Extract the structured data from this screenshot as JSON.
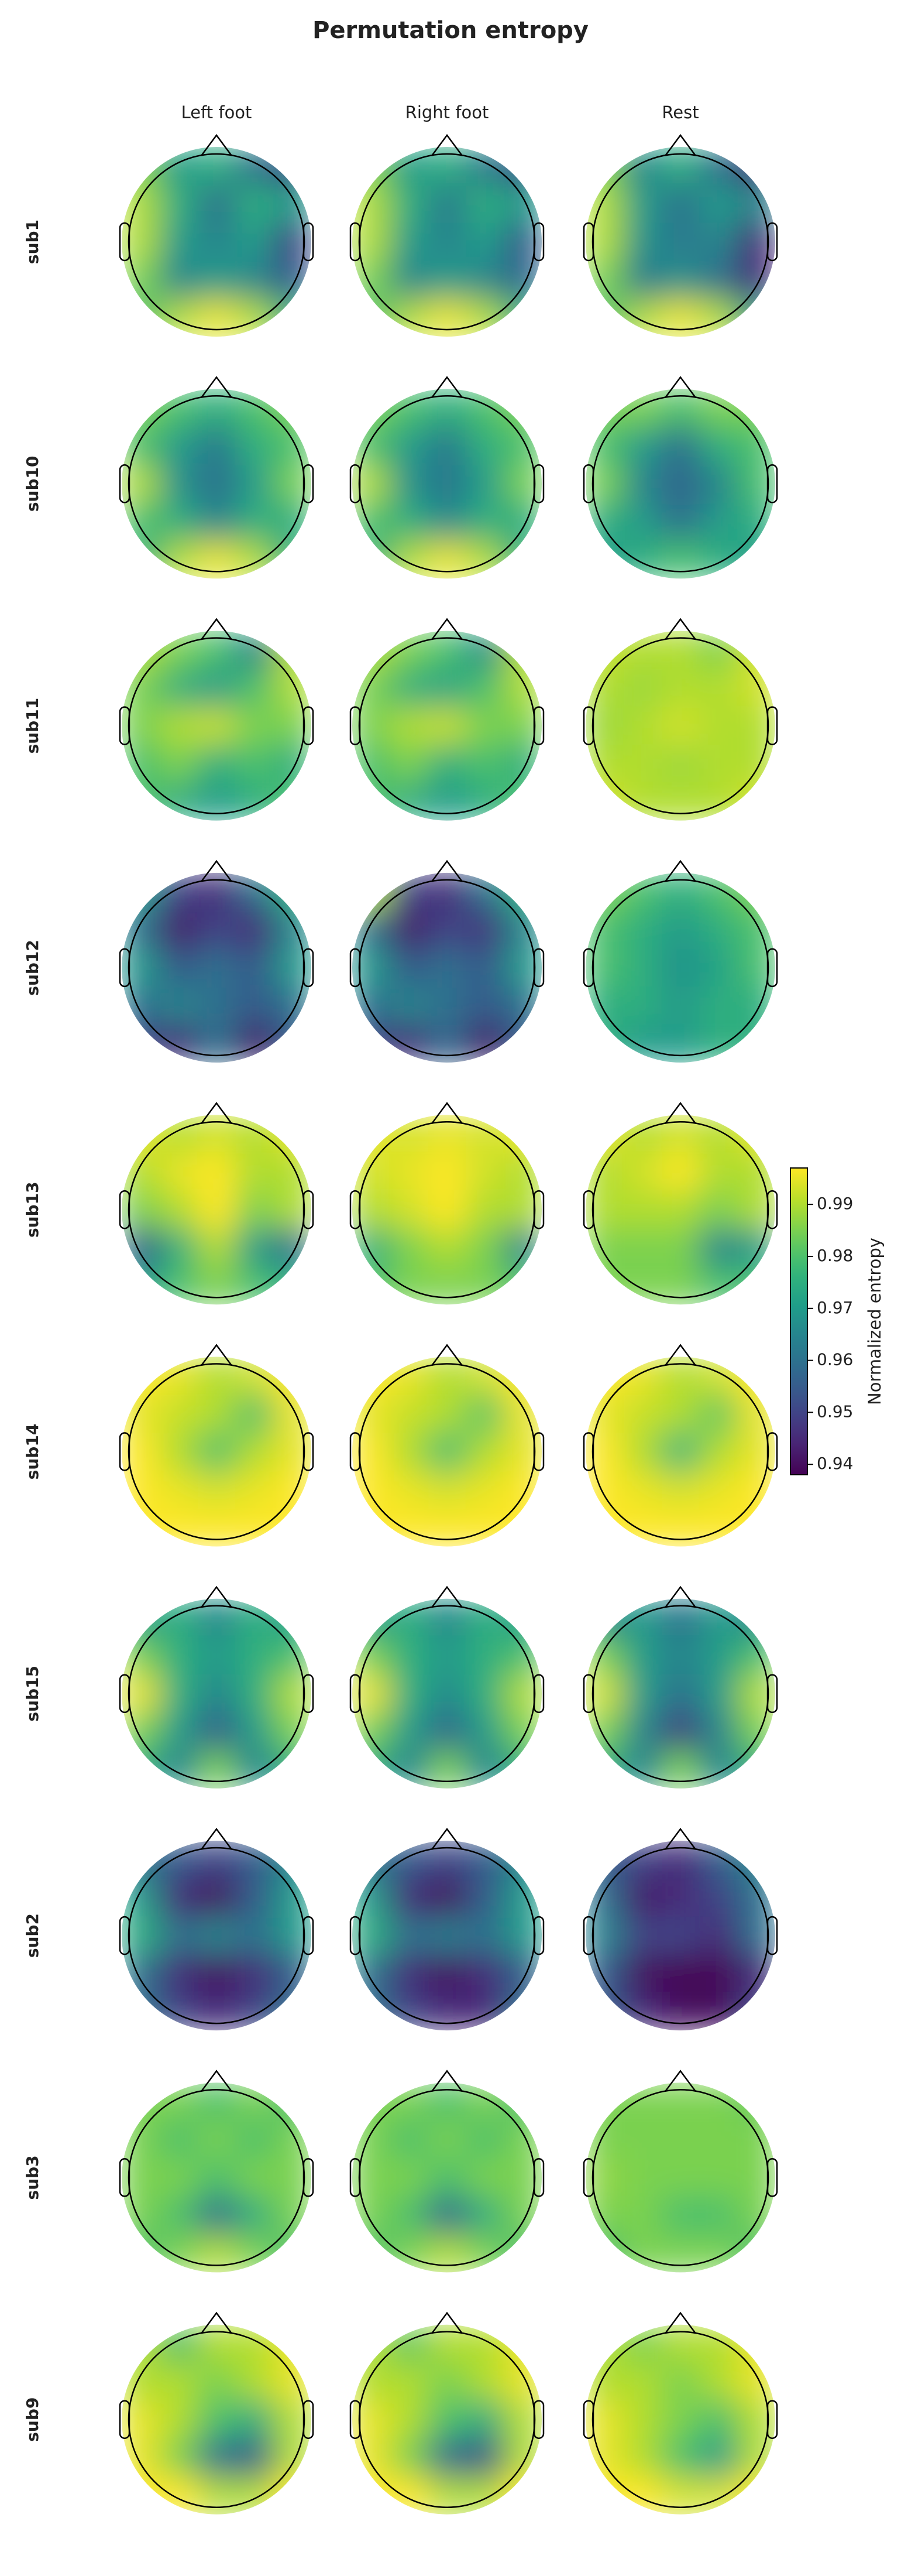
{
  "chart_data": {
    "type": "topomap",
    "title": "Permutation entropy",
    "columns": [
      "Left foot",
      "Right foot",
      "Rest"
    ],
    "rows": [
      "sub1",
      "sub10",
      "sub11",
      "sub12",
      "sub13",
      "sub14",
      "sub15",
      "sub2",
      "sub3",
      "sub9"
    ],
    "colorbar_label": "Normalized entropy",
    "clim": [
      0.938,
      0.997
    ],
    "cticks": [
      0.94,
      0.95,
      0.96,
      0.97,
      0.98,
      0.99
    ],
    "maps": [
      [
        [
          [
            0.985,
            0.97,
            0.975,
            0.96,
            0.95
          ],
          [
            0.99,
            0.975,
            0.96,
            0.975,
            0.97
          ],
          [
            0.99,
            0.97,
            0.965,
            0.97,
            0.95
          ],
          [
            0.985,
            0.965,
            0.97,
            0.965,
            0.955
          ],
          [
            0.98,
            0.99,
            0.995,
            0.99,
            0.975
          ]
        ],
        [
          [
            0.985,
            0.97,
            0.975,
            0.962,
            0.952
          ],
          [
            0.99,
            0.975,
            0.962,
            0.975,
            0.97
          ],
          [
            0.99,
            0.97,
            0.965,
            0.97,
            0.955
          ],
          [
            0.985,
            0.965,
            0.97,
            0.965,
            0.958
          ],
          [
            0.98,
            0.99,
            0.995,
            0.99,
            0.975
          ]
        ],
        [
          [
            0.985,
            0.965,
            0.975,
            0.96,
            0.945
          ],
          [
            0.99,
            0.97,
            0.96,
            0.97,
            0.965
          ],
          [
            0.99,
            0.968,
            0.962,
            0.965,
            0.945
          ],
          [
            0.985,
            0.962,
            0.968,
            0.96,
            0.945
          ],
          [
            0.98,
            0.99,
            0.995,
            0.99,
            0.97
          ]
        ]
      ],
      [
        [
          [
            0.985,
            0.98,
            0.975,
            0.98,
            0.985
          ],
          [
            0.98,
            0.97,
            0.962,
            0.975,
            0.98
          ],
          [
            0.99,
            0.968,
            0.96,
            0.97,
            0.985
          ],
          [
            0.98,
            0.975,
            0.965,
            0.975,
            0.975
          ],
          [
            0.975,
            0.99,
            0.995,
            0.99,
            0.975
          ]
        ],
        [
          [
            0.985,
            0.98,
            0.975,
            0.98,
            0.985
          ],
          [
            0.98,
            0.97,
            0.962,
            0.975,
            0.98
          ],
          [
            0.99,
            0.968,
            0.961,
            0.97,
            0.985
          ],
          [
            0.98,
            0.975,
            0.966,
            0.975,
            0.975
          ],
          [
            0.975,
            0.99,
            0.995,
            0.99,
            0.975
          ]
        ],
        [
          [
            0.985,
            0.985,
            0.98,
            0.985,
            0.985
          ],
          [
            0.98,
            0.97,
            0.96,
            0.975,
            0.98
          ],
          [
            0.985,
            0.965,
            0.957,
            0.965,
            0.98
          ],
          [
            0.975,
            0.97,
            0.96,
            0.97,
            0.975
          ],
          [
            0.97,
            0.975,
            0.98,
            0.975,
            0.97
          ]
        ]
      ],
      [
        [
          [
            0.99,
            0.985,
            0.98,
            0.965,
            0.99
          ],
          [
            0.985,
            0.975,
            0.97,
            0.98,
            0.99
          ],
          [
            0.985,
            0.99,
            0.992,
            0.985,
            0.985
          ],
          [
            0.98,
            0.985,
            0.975,
            0.98,
            0.975
          ],
          [
            0.98,
            0.975,
            0.97,
            0.975,
            0.98
          ]
        ],
        [
          [
            0.99,
            0.985,
            0.98,
            0.967,
            0.99
          ],
          [
            0.985,
            0.975,
            0.972,
            0.98,
            0.99
          ],
          [
            0.985,
            0.99,
            0.992,
            0.985,
            0.985
          ],
          [
            0.98,
            0.985,
            0.975,
            0.98,
            0.975
          ],
          [
            0.98,
            0.975,
            0.97,
            0.975,
            0.98
          ]
        ],
        [
          [
            0.992,
            0.99,
            0.99,
            0.985,
            0.993
          ],
          [
            0.99,
            0.988,
            0.99,
            0.99,
            0.993
          ],
          [
            0.988,
            0.99,
            0.993,
            0.99,
            0.99
          ],
          [
            0.99,
            0.99,
            0.988,
            0.99,
            0.99
          ],
          [
            0.993,
            0.99,
            0.99,
            0.99,
            0.993
          ]
        ]
      ],
      [
        [
          [
            0.97,
            0.95,
            0.945,
            0.96,
            0.975
          ],
          [
            0.96,
            0.942,
            0.95,
            0.945,
            0.965
          ],
          [
            0.97,
            0.955,
            0.96,
            0.955,
            0.97
          ],
          [
            0.96,
            0.965,
            0.96,
            0.955,
            0.96
          ],
          [
            0.95,
            0.945,
            0.96,
            0.942,
            0.955
          ]
        ],
        [
          [
            0.99,
            0.95,
            0.945,
            0.96,
            0.975
          ],
          [
            0.96,
            0.942,
            0.95,
            0.947,
            0.965
          ],
          [
            0.97,
            0.955,
            0.96,
            0.955,
            0.97
          ],
          [
            0.96,
            0.965,
            0.96,
            0.955,
            0.96
          ],
          [
            0.95,
            0.945,
            0.958,
            0.942,
            0.955
          ]
        ],
        [
          [
            0.985,
            0.98,
            0.975,
            0.98,
            0.985
          ],
          [
            0.98,
            0.975,
            0.97,
            0.975,
            0.98
          ],
          [
            0.98,
            0.975,
            0.968,
            0.972,
            0.98
          ],
          [
            0.975,
            0.975,
            0.97,
            0.975,
            0.975
          ],
          [
            0.975,
            0.97,
            0.97,
            0.975,
            0.975
          ]
        ]
      ],
      [
        [
          [
            0.995,
            0.99,
            0.993,
            0.99,
            0.995
          ],
          [
            0.99,
            0.995,
            0.997,
            0.99,
            0.99
          ],
          [
            0.985,
            0.99,
            0.997,
            0.985,
            0.99
          ],
          [
            0.955,
            0.975,
            0.99,
            0.97,
            0.96
          ],
          [
            0.97,
            0.98,
            0.985,
            0.98,
            0.975
          ]
        ],
        [
          [
            0.995,
            0.993,
            0.995,
            0.993,
            0.995
          ],
          [
            0.993,
            0.995,
            0.997,
            0.993,
            0.99
          ],
          [
            0.99,
            0.993,
            0.997,
            0.99,
            0.99
          ],
          [
            0.975,
            0.985,
            0.99,
            0.985,
            0.965
          ],
          [
            0.98,
            0.985,
            0.985,
            0.985,
            0.98
          ]
        ],
        [
          [
            0.995,
            0.99,
            0.993,
            0.99,
            0.995
          ],
          [
            0.99,
            0.993,
            0.997,
            0.99,
            0.99
          ],
          [
            0.99,
            0.99,
            0.99,
            0.985,
            0.99
          ],
          [
            0.985,
            0.985,
            0.985,
            0.965,
            0.97
          ],
          [
            0.985,
            0.985,
            0.985,
            0.98,
            0.98
          ]
        ]
      ],
      [
        [
          [
            0.997,
            0.995,
            0.99,
            0.993,
            0.997
          ],
          [
            0.995,
            0.992,
            0.99,
            0.98,
            0.995
          ],
          [
            0.997,
            0.99,
            0.98,
            0.99,
            0.995
          ],
          [
            0.997,
            0.995,
            0.993,
            0.995,
            0.997
          ],
          [
            0.997,
            0.997,
            0.997,
            0.997,
            0.997
          ]
        ],
        [
          [
            0.997,
            0.995,
            0.99,
            0.993,
            0.997
          ],
          [
            0.995,
            0.992,
            0.99,
            0.981,
            0.995
          ],
          [
            0.997,
            0.99,
            0.979,
            0.99,
            0.995
          ],
          [
            0.997,
            0.995,
            0.993,
            0.995,
            0.997
          ],
          [
            0.997,
            0.997,
            0.997,
            0.997,
            0.997
          ]
        ],
        [
          [
            0.997,
            0.995,
            0.99,
            0.993,
            0.997
          ],
          [
            0.995,
            0.992,
            0.99,
            0.982,
            0.995
          ],
          [
            0.997,
            0.99,
            0.977,
            0.99,
            0.995
          ],
          [
            0.997,
            0.995,
            0.993,
            0.995,
            0.997
          ],
          [
            0.997,
            0.997,
            0.997,
            0.997,
            0.997
          ]
        ]
      ],
      [
        [
          [
            0.97,
            0.975,
            0.965,
            0.975,
            0.97
          ],
          [
            0.985,
            0.975,
            0.97,
            0.975,
            0.98
          ],
          [
            0.995,
            0.975,
            0.965,
            0.975,
            0.99
          ],
          [
            0.985,
            0.97,
            0.955,
            0.97,
            0.985
          ],
          [
            0.975,
            0.965,
            0.985,
            0.965,
            0.975
          ]
        ],
        [
          [
            0.97,
            0.975,
            0.965,
            0.975,
            0.97
          ],
          [
            0.985,
            0.975,
            0.97,
            0.975,
            0.98
          ],
          [
            0.995,
            0.975,
            0.966,
            0.975,
            0.99
          ],
          [
            0.985,
            0.97,
            0.957,
            0.97,
            0.985
          ],
          [
            0.975,
            0.965,
            0.985,
            0.965,
            0.975
          ]
        ],
        [
          [
            0.965,
            0.97,
            0.96,
            0.97,
            0.965
          ],
          [
            0.985,
            0.97,
            0.965,
            0.97,
            0.98
          ],
          [
            0.993,
            0.97,
            0.96,
            0.97,
            0.99
          ],
          [
            0.985,
            0.965,
            0.948,
            0.965,
            0.985
          ],
          [
            0.975,
            0.965,
            0.985,
            0.965,
            0.975
          ]
        ]
      ],
      [
        [
          [
            0.96,
            0.955,
            0.95,
            0.955,
            0.965
          ],
          [
            0.97,
            0.945,
            0.94,
            0.955,
            0.97
          ],
          [
            0.975,
            0.96,
            0.965,
            0.96,
            0.97
          ],
          [
            0.96,
            0.945,
            0.94,
            0.945,
            0.955
          ],
          [
            0.96,
            0.95,
            0.945,
            0.95,
            0.96
          ]
        ],
        [
          [
            0.96,
            0.955,
            0.95,
            0.955,
            0.965
          ],
          [
            0.97,
            0.945,
            0.94,
            0.955,
            0.97
          ],
          [
            0.975,
            0.96,
            0.963,
            0.96,
            0.97
          ],
          [
            0.96,
            0.945,
            0.94,
            0.945,
            0.955
          ],
          [
            0.96,
            0.95,
            0.945,
            0.945,
            0.96
          ]
        ],
        [
          [
            0.955,
            0.95,
            0.945,
            0.955,
            0.965
          ],
          [
            0.96,
            0.942,
            0.945,
            0.95,
            0.96
          ],
          [
            0.965,
            0.95,
            0.95,
            0.945,
            0.96
          ],
          [
            0.955,
            0.94,
            0.938,
            0.938,
            0.945
          ],
          [
            0.955,
            0.945,
            0.94,
            0.94,
            0.95
          ]
        ]
      ],
      [
        [
          [
            0.985,
            0.985,
            0.98,
            0.985,
            0.98
          ],
          [
            0.985,
            0.98,
            0.985,
            0.98,
            0.985
          ],
          [
            0.985,
            0.985,
            0.98,
            0.985,
            0.985
          ],
          [
            0.985,
            0.98,
            0.96,
            0.975,
            0.985
          ],
          [
            0.98,
            0.985,
            0.99,
            0.985,
            0.98
          ]
        ],
        [
          [
            0.985,
            0.985,
            0.98,
            0.985,
            0.98
          ],
          [
            0.985,
            0.98,
            0.985,
            0.98,
            0.985
          ],
          [
            0.985,
            0.985,
            0.98,
            0.985,
            0.985
          ],
          [
            0.985,
            0.98,
            0.958,
            0.975,
            0.985
          ],
          [
            0.98,
            0.985,
            0.99,
            0.985,
            0.98
          ]
        ],
        [
          [
            0.985,
            0.985,
            0.985,
            0.985,
            0.983
          ],
          [
            0.985,
            0.985,
            0.985,
            0.985,
            0.985
          ],
          [
            0.987,
            0.985,
            0.985,
            0.985,
            0.985
          ],
          [
            0.985,
            0.985,
            0.98,
            0.98,
            0.985
          ],
          [
            0.98,
            0.985,
            0.985,
            0.985,
            0.98
          ]
        ]
      ],
      [
        [
          [
            0.99,
            0.98,
            0.99,
            0.99,
            0.995
          ],
          [
            0.99,
            0.99,
            0.985,
            0.99,
            0.995
          ],
          [
            0.995,
            0.99,
            0.98,
            0.975,
            0.99
          ],
          [
            0.995,
            0.985,
            0.96,
            0.955,
            0.99
          ],
          [
            0.997,
            0.997,
            0.99,
            0.99,
            0.997
          ]
        ],
        [
          [
            0.99,
            0.982,
            0.99,
            0.99,
            0.995
          ],
          [
            0.99,
            0.99,
            0.985,
            0.99,
            0.995
          ],
          [
            0.995,
            0.99,
            0.98,
            0.975,
            0.99
          ],
          [
            0.995,
            0.985,
            0.958,
            0.953,
            0.99
          ],
          [
            0.997,
            0.997,
            0.99,
            0.99,
            0.997
          ]
        ],
        [
          [
            0.99,
            0.985,
            0.99,
            0.99,
            0.995
          ],
          [
            0.99,
            0.99,
            0.985,
            0.99,
            0.995
          ],
          [
            0.995,
            0.99,
            0.985,
            0.98,
            0.99
          ],
          [
            0.995,
            0.99,
            0.98,
            0.97,
            0.99
          ],
          [
            0.997,
            0.997,
            0.993,
            0.993,
            0.997
          ]
        ]
      ]
    ]
  }
}
